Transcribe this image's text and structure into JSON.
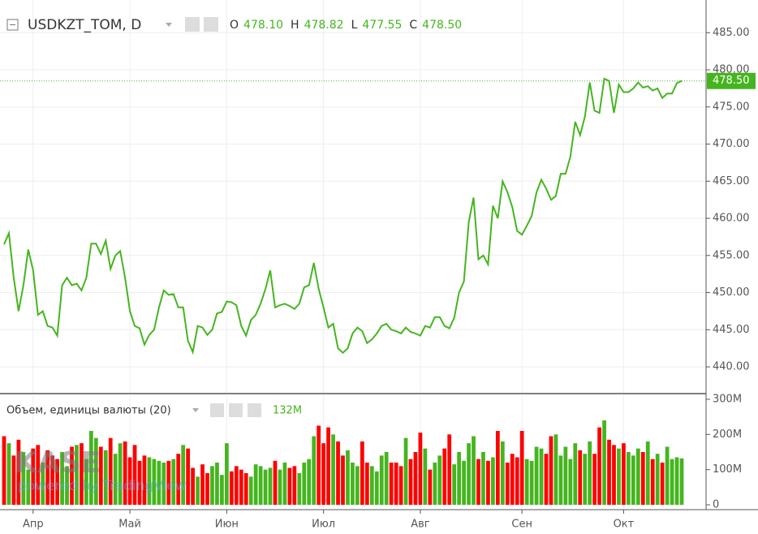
{
  "header": {
    "symbol": "USDKZT_TOM, D",
    "ohlc": [
      {
        "label": "O",
        "value": "478.10"
      },
      {
        "label": "H",
        "value": "478.82"
      },
      {
        "label": "L",
        "value": "477.55"
      },
      {
        "label": "C",
        "value": "478.50"
      }
    ]
  },
  "watermark": {
    "logo": "KASE",
    "text": "powered by TradingView"
  },
  "chart_data": [
    {
      "type": "line",
      "color": "#45b51f",
      "last_price_label": "478.50",
      "grid": true,
      "categories": [
        null,
        null,
        null,
        null,
        null,
        null,
        "Апр",
        null,
        null,
        null,
        null,
        null,
        null,
        null,
        null,
        null,
        null,
        null,
        null,
        null,
        null,
        null,
        null,
        null,
        null,
        null,
        "Май",
        null,
        null,
        null,
        null,
        null,
        null,
        null,
        null,
        null,
        null,
        null,
        null,
        null,
        null,
        null,
        null,
        null,
        null,
        null,
        "Июн",
        null,
        null,
        null,
        null,
        null,
        null,
        null,
        null,
        null,
        null,
        null,
        null,
        null,
        null,
        null,
        null,
        null,
        null,
        null,
        "Июл",
        null,
        null,
        null,
        null,
        null,
        null,
        null,
        null,
        null,
        null,
        null,
        null,
        null,
        null,
        null,
        null,
        null,
        null,
        null,
        "Авг",
        null,
        null,
        null,
        null,
        null,
        null,
        null,
        null,
        null,
        null,
        null,
        null,
        null,
        null,
        null,
        null,
        null,
        null,
        null,
        null,
        "Сен",
        null,
        null,
        null,
        null,
        null,
        null,
        null,
        null,
        null,
        null,
        null,
        null,
        null,
        null,
        null,
        null,
        null,
        null,
        null,
        null,
        "Окт",
        null,
        null,
        null,
        null,
        null,
        null,
        null,
        null,
        null,
        null,
        null,
        null
      ],
      "values": [
        456.5,
        458,
        452,
        447.5,
        451,
        455.8,
        453,
        447,
        447.5,
        445.5,
        445.3,
        444.2,
        451,
        452,
        451,
        451.2,
        450.3,
        452,
        456.6,
        456.6,
        455.2,
        457,
        453.2,
        455,
        455.6,
        452,
        447.5,
        445.5,
        445.2,
        443,
        444.3,
        445,
        448,
        450.3,
        449.7,
        449.8,
        448,
        448,
        443.5,
        442,
        445.5,
        445.3,
        444.3,
        445,
        447.2,
        447.4,
        448.8,
        448.7,
        448.3,
        445.5,
        444.2,
        446.3,
        447,
        448.5,
        450.5,
        453,
        448,
        448.3,
        448.5,
        448.2,
        447.8,
        448.5,
        450.7,
        451,
        454,
        450.5,
        448,
        445.3,
        445.8,
        442.5,
        441.9,
        442.5,
        444.5,
        445.3,
        444.8,
        443.2,
        443.7,
        444.5,
        445.5,
        445.8,
        445,
        444.8,
        444.5,
        445.3,
        444.7,
        444.5,
        444.2,
        445.5,
        445.3,
        446.7,
        446.7,
        445.5,
        445.2,
        446.6,
        450,
        451.5,
        459.5,
        462.8,
        454.5,
        455,
        453.8,
        461.7,
        460,
        465,
        463.5,
        461.5,
        458.3,
        457.8,
        459,
        460.3,
        463.5,
        465.2,
        464,
        462.5,
        463,
        466,
        466,
        468.3,
        473,
        471.2,
        473.7,
        478.3,
        474.5,
        474.2,
        478.8,
        478.5,
        474.2,
        478,
        477,
        477,
        477.5,
        478.3,
        477.6,
        477.8,
        477.2,
        477.5,
        476.2,
        476.8,
        476.8,
        478.2,
        478.5
      ],
      "ylim": [
        436.4,
        489.4
      ],
      "yticks": [
        {
          "value": 440,
          "label": "440.00"
        },
        {
          "value": 445,
          "label": "445.00"
        },
        {
          "value": 450,
          "label": "450.00"
        },
        {
          "value": 455,
          "label": "455.00"
        },
        {
          "value": 460,
          "label": "460.00"
        },
        {
          "value": 465,
          "label": "465.00"
        },
        {
          "value": 470,
          "label": "470.00"
        },
        {
          "value": 475,
          "label": "475.00"
        },
        {
          "value": 480,
          "label": "480.00"
        },
        {
          "value": 485,
          "label": "485.00"
        }
      ]
    },
    {
      "type": "bar",
      "title": "Объем, единицы валюты (20)",
      "legend_value": "132M",
      "up_color": "#45b51f",
      "down_color": "#ff0000",
      "values": [
        195,
        175,
        140,
        185,
        150,
        100,
        160,
        170,
        120,
        155,
        140,
        130,
        150,
        110,
        165,
        170,
        175,
        130,
        210,
        190,
        165,
        155,
        190,
        145,
        175,
        180,
        135,
        170,
        125,
        140,
        135,
        130,
        125,
        120,
        125,
        130,
        145,
        170,
        160,
        105,
        80,
        115,
        90,
        110,
        120,
        85,
        175,
        95,
        110,
        100,
        90,
        80,
        115,
        110,
        100,
        105,
        125,
        100,
        120,
        105,
        110,
        90,
        120,
        130,
        195,
        225,
        175,
        220,
        200,
        180,
        140,
        155,
        120,
        110,
        180,
        120,
        110,
        95,
        140,
        150,
        120,
        120,
        110,
        190,
        130,
        150,
        205,
        160,
        100,
        120,
        140,
        160,
        200,
        115,
        150,
        125,
        175,
        195,
        130,
        150,
        125,
        135,
        210,
        180,
        120,
        145,
        135,
        210,
        130,
        125,
        165,
        160,
        145,
        195,
        200,
        140,
        165,
        130,
        175,
        155,
        145,
        180,
        145,
        220,
        240,
        185,
        170,
        160,
        175,
        150,
        140,
        160,
        150,
        180,
        130,
        145,
        120,
        165,
        130,
        135,
        132
      ],
      "ylim": [
        -13.8,
        311.5
      ],
      "yticks": [
        0,
        {
          "value": 100,
          "label": "100M"
        },
        {
          "value": 200,
          "label": "200M"
        },
        {
          "value": 300,
          "label": "300M"
        }
      ]
    }
  ]
}
